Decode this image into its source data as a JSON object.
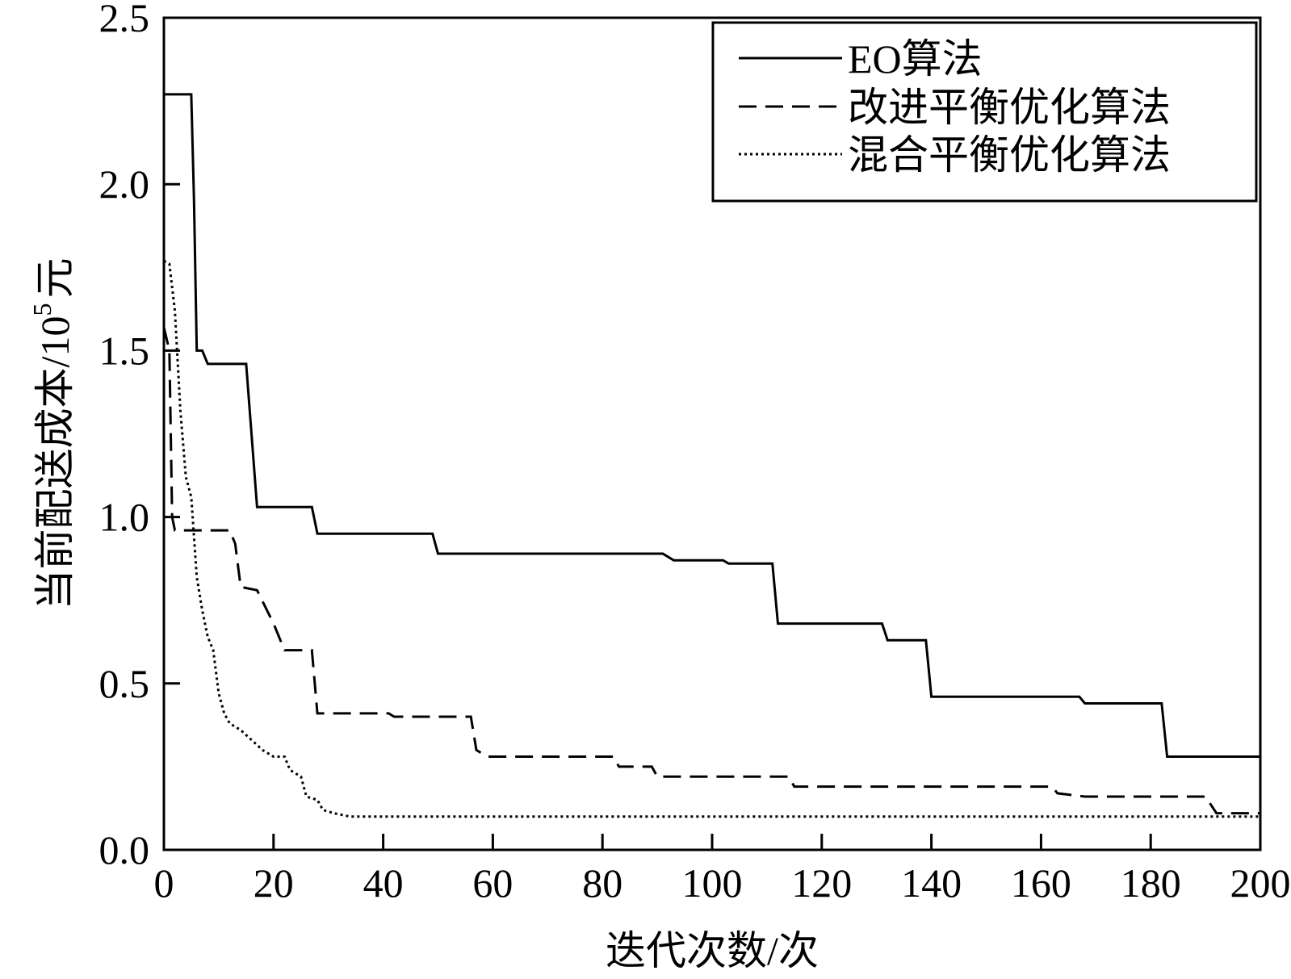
{
  "chart_data": {
    "type": "line",
    "title": "",
    "xlabel": "迭代次数/次",
    "ylabel": {
      "prefix": "当前配送成本/10",
      "sup": "5",
      "suffix": "元"
    },
    "xlim": [
      0,
      200
    ],
    "ylim": [
      0.0,
      2.5
    ],
    "xticks": [
      0,
      20,
      40,
      60,
      80,
      100,
      120,
      140,
      160,
      180,
      200
    ],
    "yticks": [
      0.0,
      0.5,
      1.0,
      1.5,
      2.0,
      2.5
    ],
    "ytick_labels": [
      "0.0",
      "0.5",
      "1.0",
      "1.5",
      "2.0",
      "2.5"
    ],
    "grid": false,
    "legend_position": "top-right",
    "series": [
      {
        "name": "EO算法",
        "style": "solid",
        "points": [
          [
            0,
            2.27
          ],
          [
            5,
            2.27
          ],
          [
            5.5,
            1.95
          ],
          [
            6,
            1.5
          ],
          [
            7,
            1.5
          ],
          [
            8,
            1.46
          ],
          [
            15,
            1.46
          ],
          [
            17,
            1.03
          ],
          [
            27,
            1.03
          ],
          [
            28,
            0.95
          ],
          [
            49,
            0.95
          ],
          [
            50,
            0.89
          ],
          [
            91,
            0.89
          ],
          [
            93,
            0.87
          ],
          [
            102,
            0.87
          ],
          [
            103,
            0.86
          ],
          [
            111,
            0.86
          ],
          [
            112,
            0.68
          ],
          [
            131,
            0.68
          ],
          [
            132,
            0.63
          ],
          [
            139,
            0.63
          ],
          [
            140,
            0.46
          ],
          [
            167,
            0.46
          ],
          [
            168,
            0.44
          ],
          [
            182,
            0.44
          ],
          [
            183,
            0.28
          ],
          [
            200,
            0.28
          ]
        ]
      },
      {
        "name": "改进平衡优化算法",
        "style": "dashed",
        "points": [
          [
            0,
            1.57
          ],
          [
            1,
            1.5
          ],
          [
            1.5,
            1.0
          ],
          [
            2,
            0.96
          ],
          [
            12,
            0.96
          ],
          [
            13,
            0.92
          ],
          [
            14,
            0.79
          ],
          [
            17,
            0.78
          ],
          [
            20,
            0.68
          ],
          [
            22,
            0.6
          ],
          [
            27,
            0.6
          ],
          [
            28,
            0.41
          ],
          [
            41,
            0.41
          ],
          [
            42,
            0.4
          ],
          [
            56,
            0.4
          ],
          [
            57,
            0.3
          ],
          [
            59,
            0.28
          ],
          [
            82,
            0.28
          ],
          [
            83,
            0.25
          ],
          [
            89,
            0.25
          ],
          [
            90,
            0.22
          ],
          [
            114,
            0.22
          ],
          [
            115,
            0.19
          ],
          [
            162,
            0.19
          ],
          [
            163,
            0.17
          ],
          [
            168,
            0.16
          ],
          [
            190,
            0.16
          ],
          [
            192,
            0.11
          ],
          [
            200,
            0.11
          ]
        ]
      },
      {
        "name": "混合平衡优化算法",
        "style": "dotted",
        "points": [
          [
            0,
            1.77
          ],
          [
            1,
            1.76
          ],
          [
            2,
            1.62
          ],
          [
            3,
            1.32
          ],
          [
            4,
            1.12
          ],
          [
            5,
            1.06
          ],
          [
            6,
            0.82
          ],
          [
            7,
            0.72
          ],
          [
            8,
            0.64
          ],
          [
            9,
            0.6
          ],
          [
            10,
            0.47
          ],
          [
            11,
            0.41
          ],
          [
            12,
            0.38
          ],
          [
            14,
            0.36
          ],
          [
            16,
            0.33
          ],
          [
            18,
            0.3
          ],
          [
            20,
            0.28
          ],
          [
            22,
            0.28
          ],
          [
            23,
            0.24
          ],
          [
            25,
            0.22
          ],
          [
            26,
            0.16
          ],
          [
            28,
            0.15
          ],
          [
            29,
            0.12
          ],
          [
            31,
            0.11
          ],
          [
            34,
            0.1
          ],
          [
            200,
            0.1
          ]
        ]
      }
    ]
  }
}
